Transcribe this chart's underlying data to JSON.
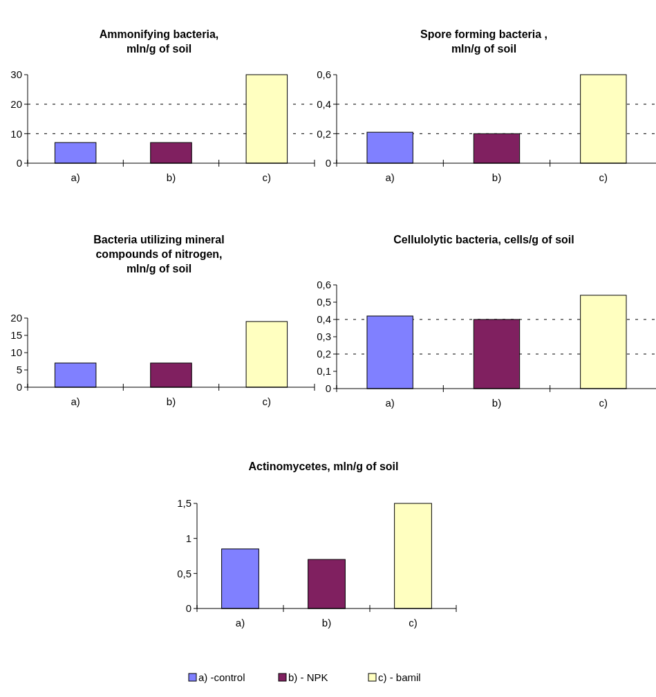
{
  "chart_data": [
    {
      "type": "bar",
      "title": "Ammonifying bacteria, mln/g of soil",
      "categories": [
        "a)",
        "b)",
        "c)"
      ],
      "values": [
        7,
        7,
        30
      ],
      "colors": [
        "#8080ff",
        "#802060",
        "#ffffc0"
      ],
      "ylim": [
        0,
        30
      ],
      "yticks": [
        0,
        10,
        20,
        30
      ],
      "grid": "y"
    },
    {
      "type": "bar",
      "title": "Spore forming bacteria , mln/g of soil",
      "categories": [
        "a)",
        "b)",
        "c)"
      ],
      "values": [
        0.21,
        0.2,
        0.6
      ],
      "colors": [
        "#8080ff",
        "#802060",
        "#ffffc0"
      ],
      "ylim": [
        0,
        0.6
      ],
      "yticks": [
        0,
        {
          "value": 0.2,
          "label": "0,2"
        },
        {
          "value": 0.4,
          "label": "0,4"
        },
        {
          "value": 0.6,
          "label": "0,6"
        }
      ],
      "grid": "y"
    },
    {
      "type": "bar",
      "title": "Bacteria utilizing mineral compounds of nitrogen, mln/g of soil",
      "categories": [
        "a)",
        "b)",
        "c)"
      ],
      "values": [
        7,
        7,
        19
      ],
      "colors": [
        "#8080ff",
        "#802060",
        "#ffffc0"
      ],
      "ylim": [
        0,
        20
      ],
      "yticks": [
        0,
        5,
        10,
        15,
        20
      ]
    },
    {
      "type": "bar",
      "title": "Cellulolytic bacteria, cells/g of soil",
      "categories": [
        "a)",
        "b)",
        "c)"
      ],
      "values": [
        0.42,
        0.4,
        0.54
      ],
      "colors": [
        "#8080ff",
        "#802060",
        "#ffffc0"
      ],
      "ylim": [
        0,
        0.6
      ],
      "yticks": [
        0,
        {
          "value": 0.1,
          "label": "0,1"
        },
        {
          "value": 0.2,
          "label": "0,2"
        },
        {
          "value": 0.3,
          "label": "0,3"
        },
        {
          "value": 0.4,
          "label": "0,4"
        },
        {
          "value": 0.5,
          "label": "0,5"
        },
        {
          "value": 0.6,
          "label": "0,6"
        }
      ],
      "ref_lines": [
        {
          "axis": "y",
          "value": 0.2,
          "line_style": "dashed"
        },
        {
          "axis": "y",
          "value": 0.4,
          "line_style": "dashed"
        }
      ]
    },
    {
      "type": "bar",
      "title": "Actinomycetes, mln/g of soil",
      "categories": [
        "a)",
        "b)",
        "c)"
      ],
      "stacked": true,
      "legend": "bottom",
      "ylim": [
        0,
        1.5
      ],
      "yticks": [
        0,
        {
          "value": 0.5,
          "label": "0,5"
        },
        1,
        {
          "value": 1.5,
          "label": "1,5"
        }
      ],
      "series": [
        {
          "name": "a) -control",
          "color": "#8080ff",
          "values": [
            0.85,
            null,
            null
          ]
        },
        {
          "name": "b) - NPK",
          "color": "#802060",
          "values": [
            null,
            0.7,
            null
          ]
        },
        {
          "name": "c) - bamil",
          "color": "#ffffc0",
          "values": [
            null,
            null,
            1.5
          ]
        }
      ]
    }
  ]
}
